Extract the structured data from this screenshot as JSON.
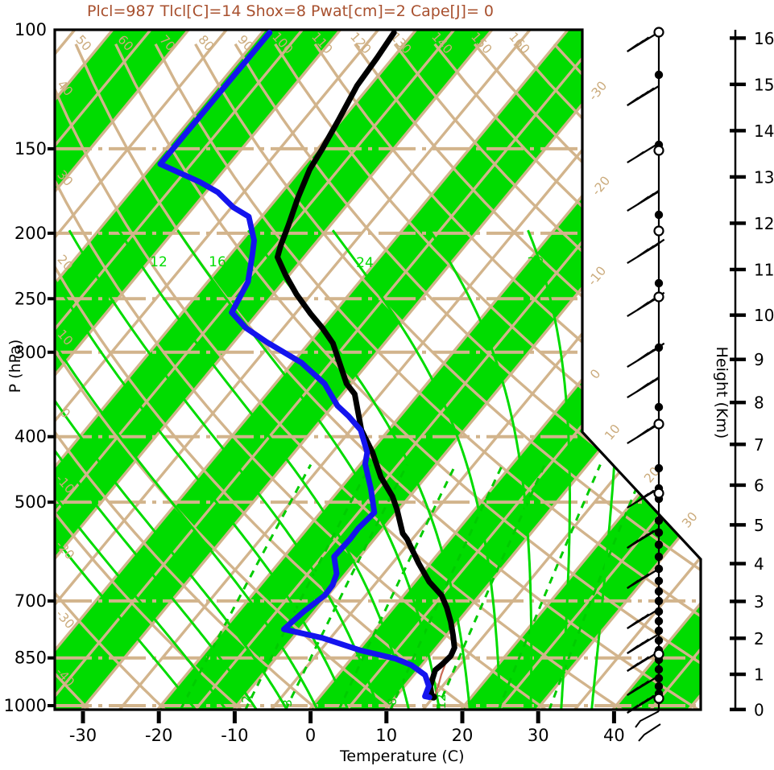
{
  "title": {
    "text": "Plcl=987 Tlcl[C]=14 Shox=8 Pwat[cm]=2 Cape[J]= 0",
    "color": "#a8502e",
    "indices": {
      "Plcl": 987,
      "Tlcl_C": 14,
      "Shox": 8,
      "Pwat_cm": 2,
      "Cape_J": 0
    }
  },
  "axes": {
    "pressure": {
      "label": "P (hPa)",
      "ticks": [
        100,
        150,
        200,
        250,
        300,
        400,
        500,
        700,
        850,
        1000
      ]
    },
    "temperature": {
      "label": "Temperature (C)",
      "ticks": [
        -30,
        -20,
        -10,
        0,
        10,
        20,
        30,
        40
      ]
    },
    "height": {
      "label": "Height (Km)",
      "ticks": [
        0,
        1,
        2,
        3,
        4,
        5,
        6,
        7,
        8,
        9,
        10,
        11,
        12,
        13,
        14,
        15,
        16
      ]
    }
  },
  "colors": {
    "band_green": "#00dc00",
    "line_green": "#00dc00",
    "mix_green": "#00cc00",
    "tan": "#d2b48c",
    "label_tan": "#cbab7c",
    "temperature_curve": "#000000",
    "dewpoint_curve": "#1414ee",
    "parcel": "#c96a55",
    "frame": "#000000"
  },
  "chart_data": {
    "type": "line",
    "subtype": "skewT-logP-sounding",
    "title": "Plcl=987 Tlcl[C]=14 Shox=8 Pwat[cm]=2 Cape[J]= 0",
    "xlabel": "Temperature (C)",
    "ylabel": "P (hPa)",
    "y2label": "Height (Km)",
    "xlim": [
      -35,
      45
    ],
    "ylim_hpa": [
      1014,
      100
    ],
    "temperature_profile_p_T": [
      [
        971,
        14.8
      ],
      [
        936,
        13.4
      ],
      [
        886,
        12.3
      ],
      [
        867,
        12.6
      ],
      [
        844,
        12.8
      ],
      [
        821,
        12.4
      ],
      [
        788,
        10.9
      ],
      [
        752,
        9.1
      ],
      [
        716,
        7.0
      ],
      [
        687,
        5.0
      ],
      [
        656,
        1.9
      ],
      [
        616,
        -1.5
      ],
      [
        567,
        -5.7
      ],
      [
        556,
        -6.9
      ],
      [
        512,
        -10.3
      ],
      [
        490,
        -12.3
      ],
      [
        459,
        -15.9
      ],
      [
        422,
        -19.7
      ],
      [
        391,
        -23.6
      ],
      [
        346,
        -28.4
      ],
      [
        334,
        -30.6
      ],
      [
        291,
        -36.8
      ],
      [
        276,
        -39.9
      ],
      [
        263,
        -43.0
      ],
      [
        246,
        -47.0
      ],
      [
        231,
        -50.4
      ],
      [
        217,
        -53.5
      ],
      [
        208,
        -54.4
      ],
      [
        195,
        -55.5
      ],
      [
        177,
        -57.3
      ],
      [
        161,
        -58.8
      ],
      [
        150,
        -59.4
      ],
      [
        136,
        -60.4
      ],
      [
        121,
        -61.7
      ],
      [
        110,
        -62.1
      ],
      [
        101,
        -62.6
      ]
    ],
    "dewpoint_profile_p_T": [
      [
        972,
        14.5
      ],
      [
        969,
        13.8
      ],
      [
        936,
        13.2
      ],
      [
        901,
        11.5
      ],
      [
        871,
        8.6
      ],
      [
        852,
        5.8
      ],
      [
        828,
        0.2
      ],
      [
        794,
        -6.1
      ],
      [
        771,
        -12.1
      ],
      [
        725,
        -11.4
      ],
      [
        687,
        -10.4
      ],
      [
        663,
        -10.5
      ],
      [
        638,
        -11.2
      ],
      [
        602,
        -13.4
      ],
      [
        567,
        -13.2
      ],
      [
        547,
        -13.3
      ],
      [
        518,
        -12.9
      ],
      [
        477,
        -16.0
      ],
      [
        439,
        -19.4
      ],
      [
        422,
        -20.4
      ],
      [
        391,
        -23.7
      ],
      [
        373,
        -26.8
      ],
      [
        360,
        -29.4
      ],
      [
        334,
        -33.5
      ],
      [
        314,
        -38.1
      ],
      [
        311,
        -38.8
      ],
      [
        290,
        -45.6
      ],
      [
        276,
        -50.0
      ],
      [
        262,
        -53.5
      ],
      [
        236,
        -54.7
      ],
      [
        215,
        -57.1
      ],
      [
        205,
        -58.4
      ],
      [
        202,
        -59.0
      ],
      [
        189,
        -61.7
      ],
      [
        183,
        -64.8
      ],
      [
        174,
        -68.4
      ],
      [
        168,
        -71.9
      ],
      [
        158,
        -79.1
      ],
      [
        101,
        -79.0
      ]
    ],
    "parcel_trace_p_T": [
      [
        971,
        15.2
      ],
      [
        950,
        14.7
      ],
      [
        930,
        14.3
      ],
      [
        900,
        13.6
      ],
      [
        870,
        13.0
      ],
      [
        845,
        12.6
      ]
    ],
    "surface_point_p_T": [
      971,
      15.0
    ],
    "isotherms": {
      "step_C": 5,
      "range_C": [
        -115,
        50
      ],
      "right_edge_labels": [
        {
          "v": -30,
          "x": 738,
          "y": 126
        },
        {
          "v": -20,
          "x": 742,
          "y": 244
        },
        {
          "v": -10,
          "x": 737,
          "y": 356
        },
        {
          "v": 0,
          "x": 740,
          "y": 472
        },
        {
          "v": 10,
          "x": 758,
          "y": 548
        },
        {
          "v": 20,
          "x": 807,
          "y": 601
        },
        {
          "v": 30,
          "x": 854,
          "y": 657
        }
      ]
    },
    "green_band_parity_start_C": -140,
    "dry_adiabats": {
      "step_C": 10,
      "range_C": [
        -40,
        180
      ],
      "top_labels": [
        {
          "v": 50,
          "x": 100
        },
        {
          "v": 60,
          "x": 152
        },
        {
          "v": 70,
          "x": 204
        },
        {
          "v": 80,
          "x": 252
        },
        {
          "v": 90,
          "x": 301
        },
        {
          "v": 100,
          "x": 351
        },
        {
          "v": 110,
          "x": 400
        },
        {
          "v": 120,
          "x": 448
        },
        {
          "v": 130,
          "x": 498
        },
        {
          "v": 140,
          "x": 549
        },
        {
          "v": 150,
          "x": 598
        },
        {
          "v": 160,
          "x": 645
        }
      ],
      "top_label_y": 57,
      "left_labels": [
        {
          "v": 40,
          "y": 113
        },
        {
          "v": 30,
          "y": 225
        },
        {
          "v": 20,
          "y": 330
        },
        {
          "v": 10,
          "y": 423
        },
        {
          "v": 0,
          "y": 517
        },
        {
          "v": -10,
          "y": 605
        },
        {
          "v": -20,
          "y": 687
        },
        {
          "v": -30,
          "y": 773
        },
        {
          "v": -40,
          "y": 845
        }
      ],
      "left_label_x": 77
    },
    "moist_adiabats": {
      "step_C": 4,
      "range_C": [
        -16,
        36
      ],
      "labels": [
        {
          "v": 12,
          "x": 197,
          "y": 331
        },
        {
          "v": 16,
          "x": 270,
          "y": 331
        },
        {
          "v": 24,
          "x": 453,
          "y": 332
        },
        {
          "v": 32,
          "x": 665,
          "y": 332
        }
      ]
    },
    "mixing_ratio_g_kg": {
      "values": [
        1,
        2,
        3,
        5,
        8,
        12,
        20,
        30
      ],
      "labels": [
        {
          "v": 2,
          "x": 311,
          "y": 869
        },
        {
          "v": 3,
          "x": 362,
          "y": 874
        },
        {
          "v": 8,
          "x": 492,
          "y": 872
        },
        {
          "v": 12,
          "x": 553,
          "y": 872
        }
      ]
    },
    "wind_barbs": [
      {
        "y": 40,
        "flag": 0,
        "full": 3,
        "half": 0
      },
      {
        "y": 107,
        "flag": 0,
        "full": 4,
        "half": 1
      },
      {
        "y": 178,
        "flag": 1,
        "full": 0,
        "half": 1
      },
      {
        "y": 238,
        "flag": 1,
        "full": 3,
        "half": 0
      },
      {
        "y": 303,
        "flag": 1,
        "full": 4,
        "half": 0
      },
      {
        "y": 369,
        "flag": 1,
        "full": 4,
        "half": 0
      },
      {
        "y": 432,
        "flag": 1,
        "full": 4,
        "half": 0
      },
      {
        "y": 470,
        "flag": 1,
        "full": 3,
        "half": 0
      },
      {
        "y": 527,
        "flag": 1,
        "full": 3,
        "half": 0
      },
      {
        "y": 607,
        "flag": 1,
        "full": 2,
        "half": 0
      },
      {
        "y": 657,
        "flag": 0,
        "full": 4,
        "half": 1
      },
      {
        "y": 707,
        "flag": 0,
        "full": 3,
        "half": 1
      },
      {
        "y": 757,
        "flag": 0,
        "full": 3,
        "half": 1
      },
      {
        "y": 788,
        "flag": 0,
        "full": 3,
        "half": 1
      },
      {
        "y": 810,
        "flag": 0,
        "full": 3,
        "half": 1
      },
      {
        "y": 840,
        "flag": 0,
        "full": 3,
        "half": 1
      },
      {
        "y": 862,
        "flag": 0,
        "full": 4,
        "half": 0
      }
    ],
    "wind_dots_filled_y": [
      93,
      180,
      267,
      352,
      432,
      506,
      582,
      607,
      620,
      647,
      662,
      677,
      692,
      707,
      722,
      735,
      747,
      760,
      772,
      784,
      796,
      808,
      820,
      832,
      843,
      853,
      862,
      870
    ],
    "wind_dots_open_y": [
      40,
      187,
      287,
      369,
      527,
      613,
      813,
      868
    ],
    "surface_wind_hooks": [
      [
        [
          818,
          884
        ],
        [
          795,
          896
        ],
        [
          789,
          904
        ]
      ],
      [
        [
          820,
          900
        ],
        [
          800,
          913
        ],
        [
          793,
          921
        ]
      ]
    ]
  }
}
